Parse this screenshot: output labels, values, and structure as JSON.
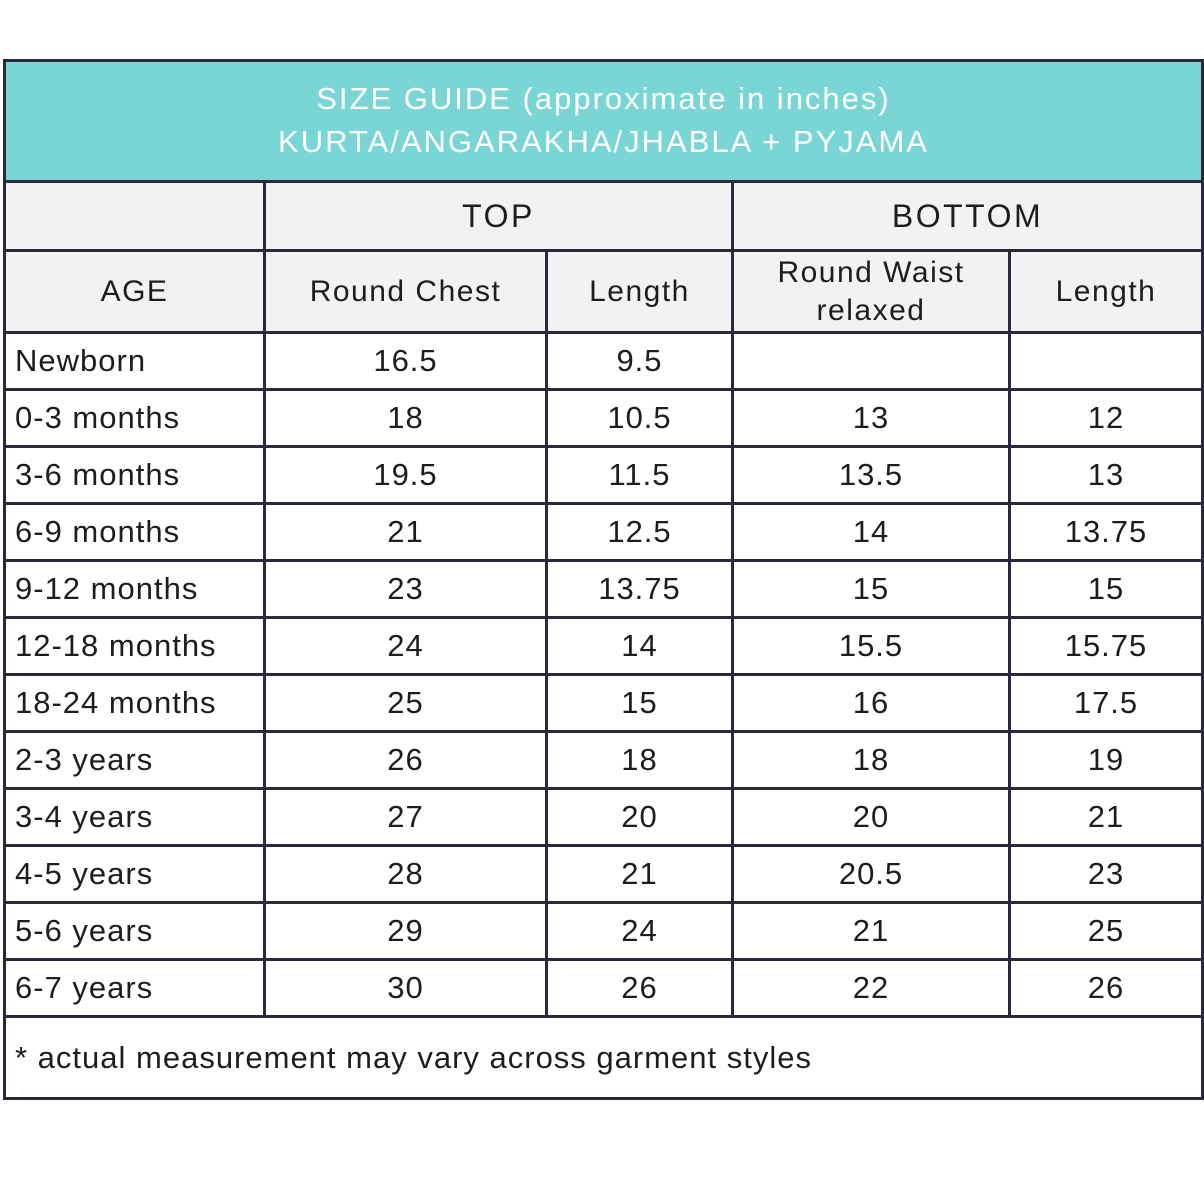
{
  "banner": {
    "line1": "SIZE GUIDE (approximate in inches)",
    "line2": "KURTA/ANGARAKHA/JHABLA + PYJAMA"
  },
  "chart_data": {
    "type": "table",
    "title": "SIZE GUIDE (approximate in inches) KURTA/ANGARAKHA/JHABLA + PYJAMA",
    "group_labels": {
      "top": "TOP",
      "bottom": "BOTTOM"
    },
    "column_groups": [
      "",
      "TOP",
      "TOP",
      "BOTTOM",
      "BOTTOM"
    ],
    "columns": [
      "AGE",
      "Round Chest",
      "Length",
      "Round Waist relaxed",
      "Length"
    ],
    "rows": [
      [
        "Newborn",
        "16.5",
        "9.5",
        "",
        ""
      ],
      [
        "0-3 months",
        "18",
        "10.5",
        "13",
        "12"
      ],
      [
        "3-6 months",
        "19.5",
        "11.5",
        "13.5",
        "13"
      ],
      [
        "6-9 months",
        "21",
        "12.5",
        "14",
        "13.75"
      ],
      [
        "9-12 months",
        "23",
        "13.75",
        "15",
        "15"
      ],
      [
        "12-18 months",
        "24",
        "14",
        "15.5",
        "15.75"
      ],
      [
        "18-24 months",
        "25",
        "15",
        "16",
        "17.5"
      ],
      [
        "2-3 years",
        "26",
        "18",
        "18",
        "19"
      ],
      [
        "3-4 years",
        "27",
        "20",
        "20",
        "21"
      ],
      [
        "4-5 years",
        "28",
        "21",
        "20.5",
        "23"
      ],
      [
        "5-6 years",
        "29",
        "24",
        "21",
        "25"
      ],
      [
        "6-7 years",
        "30",
        "26",
        "22",
        "26"
      ]
    ],
    "footnote": "* actual measurement may vary across garment styles",
    "units": "inches"
  },
  "colors": {
    "banner_background": "#7ad6d5",
    "banner_text": "#ffffff",
    "header_background": "#f2f2f2",
    "row_background": "#ffffff",
    "border": "#2a293b",
    "text": "#1d1d1d"
  }
}
